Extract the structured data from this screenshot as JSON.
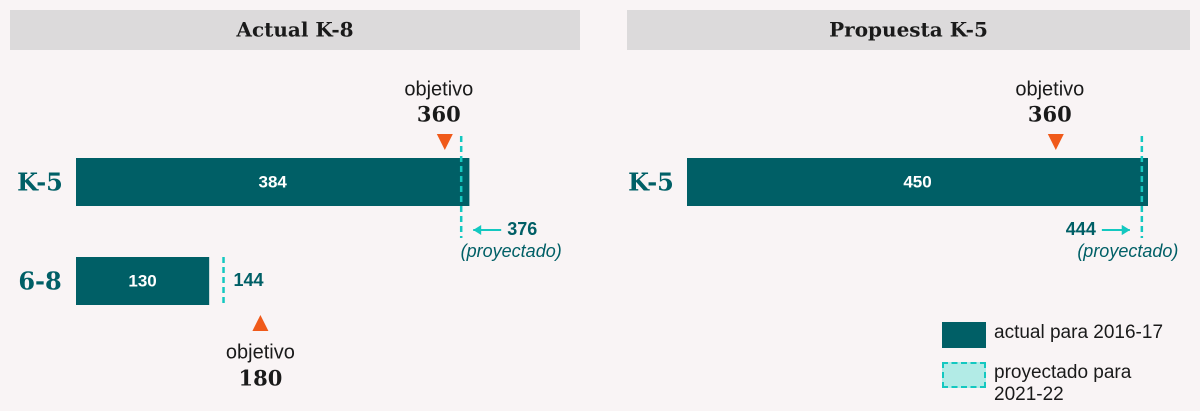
{
  "legend": [
    {
      "name": "actual para 2016-17",
      "color": "#005f66"
    },
    {
      "name": "proyectado para 2021-22",
      "color": "#14c8c0"
    }
  ],
  "chart_data": [
    {
      "type": "bar",
      "title": "Actual K-8",
      "categories": [
        "K-5",
        "6-8"
      ],
      "values": [
        384,
        130
      ],
      "projected": [
        376,
        144
      ],
      "targets": [
        360,
        180
      ],
      "target_label": "objetivo",
      "projected_label": "(proyectado)",
      "xlim": [
        0,
        450
      ]
    },
    {
      "type": "bar",
      "title": "Propuesta K-5",
      "categories": [
        "K-5"
      ],
      "values": [
        450
      ],
      "projected": [
        444
      ],
      "targets": [
        360
      ],
      "target_label": "objetivo",
      "projected_label": "(proyectado)",
      "xlim": [
        0,
        450
      ]
    }
  ]
}
